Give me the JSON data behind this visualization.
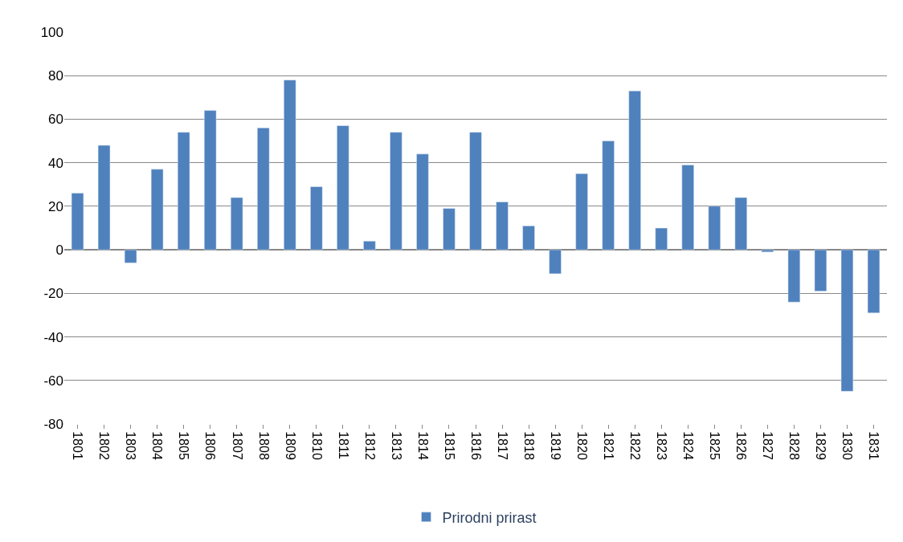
{
  "chart_data": {
    "type": "bar",
    "categories": [
      "1801",
      "1802",
      "1803",
      "1804",
      "1805",
      "1806",
      "1807",
      "1808",
      "1809",
      "1810",
      "1811",
      "1812",
      "1813",
      "1814",
      "1815",
      "1816",
      "1817",
      "1818",
      "1819",
      "1820",
      "1821",
      "1822",
      "1823",
      "1824",
      "1825",
      "1826",
      "1827",
      "1828",
      "1829",
      "1830",
      "1831"
    ],
    "series": [
      {
        "name": "Prirodni prirast",
        "color": "#4f81bd",
        "values": [
          26,
          48,
          -6,
          37,
          54,
          64,
          24,
          56,
          78,
          29,
          57,
          4,
          54,
          44,
          19,
          54,
          22,
          11,
          -11,
          35,
          50,
          73,
          10,
          39,
          20,
          24,
          -1,
          -24,
          -19,
          -65,
          -29
        ]
      }
    ],
    "ylim": [
      -80,
      100
    ],
    "yticks": [
      -80,
      -60,
      -40,
      -20,
      0,
      20,
      40,
      60,
      80,
      100
    ],
    "grid": "y",
    "legend": "bottom"
  }
}
